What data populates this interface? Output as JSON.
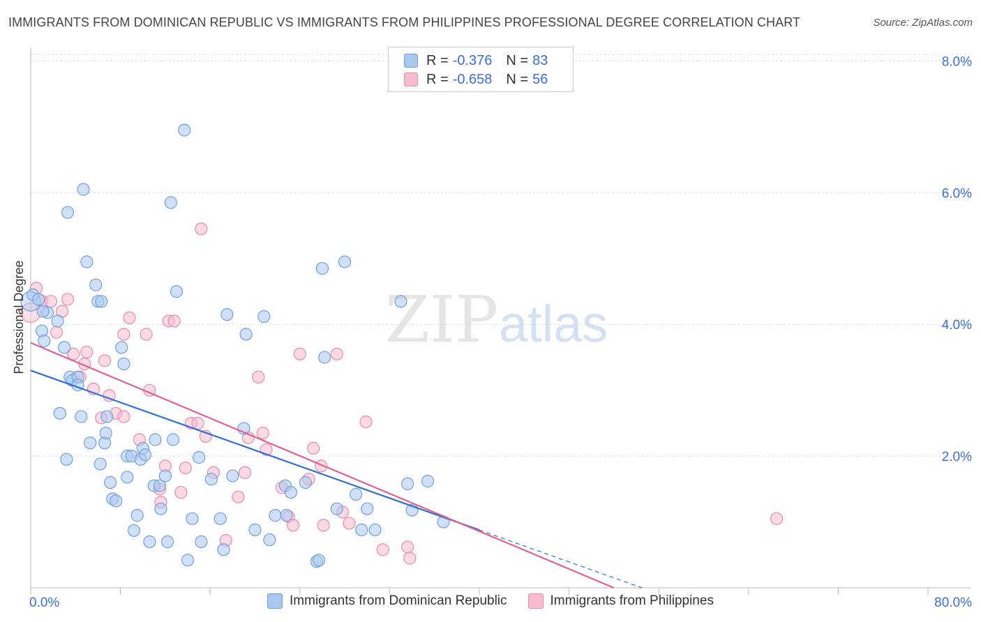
{
  "title": "IMMIGRANTS FROM DOMINICAN REPUBLIC VS IMMIGRANTS FROM PHILIPPINES PROFESSIONAL DEGREE CORRELATION CHART",
  "source": "Source: ZipAtlas.com",
  "watermark": {
    "zip": "ZIP",
    "atlas": "atlas"
  },
  "colors": {
    "blue_fill": "#a9c8f0",
    "blue_stroke": "#6f9fe0",
    "blue_line": "#2f6fd0",
    "pink_fill": "#f7bcd0",
    "pink_stroke": "#e88aab",
    "pink_line": "#e0608f",
    "axis_text": "#3a6fd8",
    "grid": "#dddddd"
  },
  "legend": {
    "rows": [
      {
        "r_label": "R =",
        "r_value": "-0.376",
        "n_label": "N =",
        "n_value": "83",
        "color": "blue"
      },
      {
        "r_label": "R =",
        "r_value": "-0.658",
        "n_label": "N =",
        "n_value": "56",
        "color": "pink"
      }
    ]
  },
  "chart_data": {
    "type": "scatter",
    "title": "IMMIGRANTS FROM DOMINICAN REPUBLIC VS IMMIGRANTS FROM PHILIPPINES PROFESSIONAL DEGREE CORRELATION CHART",
    "xlabel": "",
    "ylabel": "Professional Degree",
    "xlim": [
      0,
      80
    ],
    "ylim": [
      0,
      8.1
    ],
    "x_tick_labels": [
      "0.0%",
      "80.0%"
    ],
    "y_ticks": [
      2,
      4,
      6,
      8
    ],
    "y_tick_labels": [
      "2.0%",
      "4.0%",
      "6.0%",
      "8.0%"
    ],
    "grid": true,
    "legend_position": "top-center",
    "series": [
      {
        "name": "Immigrants from Dominican Republic",
        "color": "blue",
        "points": [
          [
            0.0,
            4.35
          ],
          [
            0.2,
            4.45
          ],
          [
            0.7,
            4.38
          ],
          [
            1.5,
            4.18
          ],
          [
            1.1,
            4.2
          ],
          [
            1.0,
            3.9
          ],
          [
            1.2,
            3.75
          ],
          [
            2.4,
            4.05
          ],
          [
            3.0,
            3.65
          ],
          [
            3.5,
            3.2
          ],
          [
            3.7,
            3.15
          ],
          [
            4.2,
            3.2
          ],
          [
            4.2,
            3.08
          ],
          [
            2.6,
            2.65
          ],
          [
            4.5,
            2.6
          ],
          [
            3.3,
            5.7
          ],
          [
            4.7,
            6.05
          ],
          [
            5.0,
            4.95
          ],
          [
            5.8,
            4.6
          ],
          [
            6.0,
            4.35
          ],
          [
            6.3,
            4.35
          ],
          [
            8.1,
            3.65
          ],
          [
            8.3,
            3.4
          ],
          [
            6.8,
            2.6
          ],
          [
            5.3,
            2.2
          ],
          [
            6.6,
            2.2
          ],
          [
            6.7,
            2.35
          ],
          [
            6.2,
            1.88
          ],
          [
            3.2,
            1.95
          ],
          [
            7.1,
            1.6
          ],
          [
            8.6,
            1.68
          ],
          [
            7.3,
            1.35
          ],
          [
            7.6,
            1.32
          ],
          [
            8.6,
            2.0
          ],
          [
            9.0,
            2.0
          ],
          [
            9.8,
            1.95
          ],
          [
            10.0,
            2.12
          ],
          [
            10.2,
            2.02
          ],
          [
            11.1,
            2.25
          ],
          [
            11.0,
            1.55
          ],
          [
            11.5,
            1.55
          ],
          [
            12.0,
            1.7
          ],
          [
            11.6,
            1.2
          ],
          [
            9.5,
            1.1
          ],
          [
            9.2,
            0.87
          ],
          [
            10.6,
            0.7
          ],
          [
            12.2,
            0.7
          ],
          [
            12.5,
            5.85
          ],
          [
            12.7,
            2.25
          ],
          [
            13.0,
            4.5
          ],
          [
            13.7,
            6.95
          ],
          [
            14.4,
            1.05
          ],
          [
            14.0,
            0.42
          ],
          [
            15.0,
            1.98
          ],
          [
            15.2,
            0.7
          ],
          [
            16.1,
            1.65
          ],
          [
            16.9,
            1.05
          ],
          [
            17.5,
            4.15
          ],
          [
            17.2,
            0.58
          ],
          [
            18.0,
            1.7
          ],
          [
            19.0,
            2.42
          ],
          [
            19.2,
            3.85
          ],
          [
            20.0,
            0.88
          ],
          [
            20.8,
            4.12
          ],
          [
            21.3,
            0.73
          ],
          [
            21.8,
            1.1
          ],
          [
            22.8,
            1.1
          ],
          [
            22.7,
            1.55
          ],
          [
            23.2,
            1.45
          ],
          [
            24.5,
            1.6
          ],
          [
            25.5,
            0.4
          ],
          [
            25.7,
            0.42
          ],
          [
            26.0,
            4.85
          ],
          [
            26.2,
            3.5
          ],
          [
            27.3,
            1.2
          ],
          [
            28.0,
            4.95
          ],
          [
            29.0,
            1.42
          ],
          [
            29.5,
            0.88
          ],
          [
            30.0,
            1.2
          ],
          [
            30.7,
            0.88
          ],
          [
            33.0,
            4.35
          ],
          [
            33.6,
            1.58
          ],
          [
            34.0,
            1.18
          ],
          [
            35.4,
            1.62
          ],
          [
            36.8,
            1.0
          ]
        ]
      },
      {
        "name": "Immigrants from Philippines",
        "color": "pink",
        "points": [
          [
            0.0,
            4.18
          ],
          [
            0.5,
            4.55
          ],
          [
            1.0,
            4.35
          ],
          [
            1.8,
            4.35
          ],
          [
            2.3,
            3.88
          ],
          [
            2.8,
            4.2
          ],
          [
            3.3,
            4.38
          ],
          [
            3.8,
            3.55
          ],
          [
            4.4,
            3.2
          ],
          [
            4.8,
            3.4
          ],
          [
            5.0,
            3.58
          ],
          [
            5.6,
            3.02
          ],
          [
            6.6,
            3.45
          ],
          [
            6.3,
            2.58
          ],
          [
            7.0,
            2.92
          ],
          [
            7.6,
            2.65
          ],
          [
            8.3,
            2.6
          ],
          [
            8.3,
            3.85
          ],
          [
            8.8,
            4.1
          ],
          [
            9.7,
            2.25
          ],
          [
            10.3,
            3.85
          ],
          [
            10.6,
            3.0
          ],
          [
            11.6,
            1.3
          ],
          [
            11.5,
            1.5
          ],
          [
            12.0,
            1.85
          ],
          [
            12.3,
            4.05
          ],
          [
            12.8,
            4.05
          ],
          [
            13.4,
            1.45
          ],
          [
            13.8,
            1.82
          ],
          [
            14.3,
            2.5
          ],
          [
            14.9,
            2.5
          ],
          [
            15.2,
            5.45
          ],
          [
            15.6,
            2.3
          ],
          [
            16.3,
            1.75
          ],
          [
            17.4,
            0.72
          ],
          [
            18.5,
            1.38
          ],
          [
            19.1,
            1.75
          ],
          [
            19.4,
            2.28
          ],
          [
            20.3,
            3.2
          ],
          [
            20.7,
            2.35
          ],
          [
            21.0,
            2.1
          ],
          [
            22.4,
            1.52
          ],
          [
            23.0,
            1.08
          ],
          [
            23.4,
            0.95
          ],
          [
            24.0,
            3.55
          ],
          [
            24.8,
            1.65
          ],
          [
            25.2,
            2.12
          ],
          [
            25.9,
            1.85
          ],
          [
            26.1,
            0.95
          ],
          [
            27.3,
            3.55
          ],
          [
            27.8,
            1.15
          ],
          [
            28.4,
            0.98
          ],
          [
            29.9,
            2.52
          ],
          [
            31.4,
            0.58
          ],
          [
            33.6,
            0.62
          ],
          [
            33.8,
            0.45
          ],
          [
            66.5,
            1.05
          ]
        ]
      }
    ],
    "trend_lines": [
      {
        "series": "Immigrants from Dominican Republic",
        "x_start": 0,
        "y_start": 3.3,
        "x_solid_end": 40,
        "x_dashed_end": 54.5,
        "y_dashed_end": 0
      },
      {
        "series": "Immigrants from Philippines",
        "x_start": 0,
        "y_start": 3.72,
        "x_end": 52,
        "y_end": 0
      }
    ]
  },
  "bottom_legend": [
    {
      "label": "Immigrants from Dominican Republic",
      "color": "blue"
    },
    {
      "label": "Immigrants from Philippines",
      "color": "pink"
    }
  ]
}
